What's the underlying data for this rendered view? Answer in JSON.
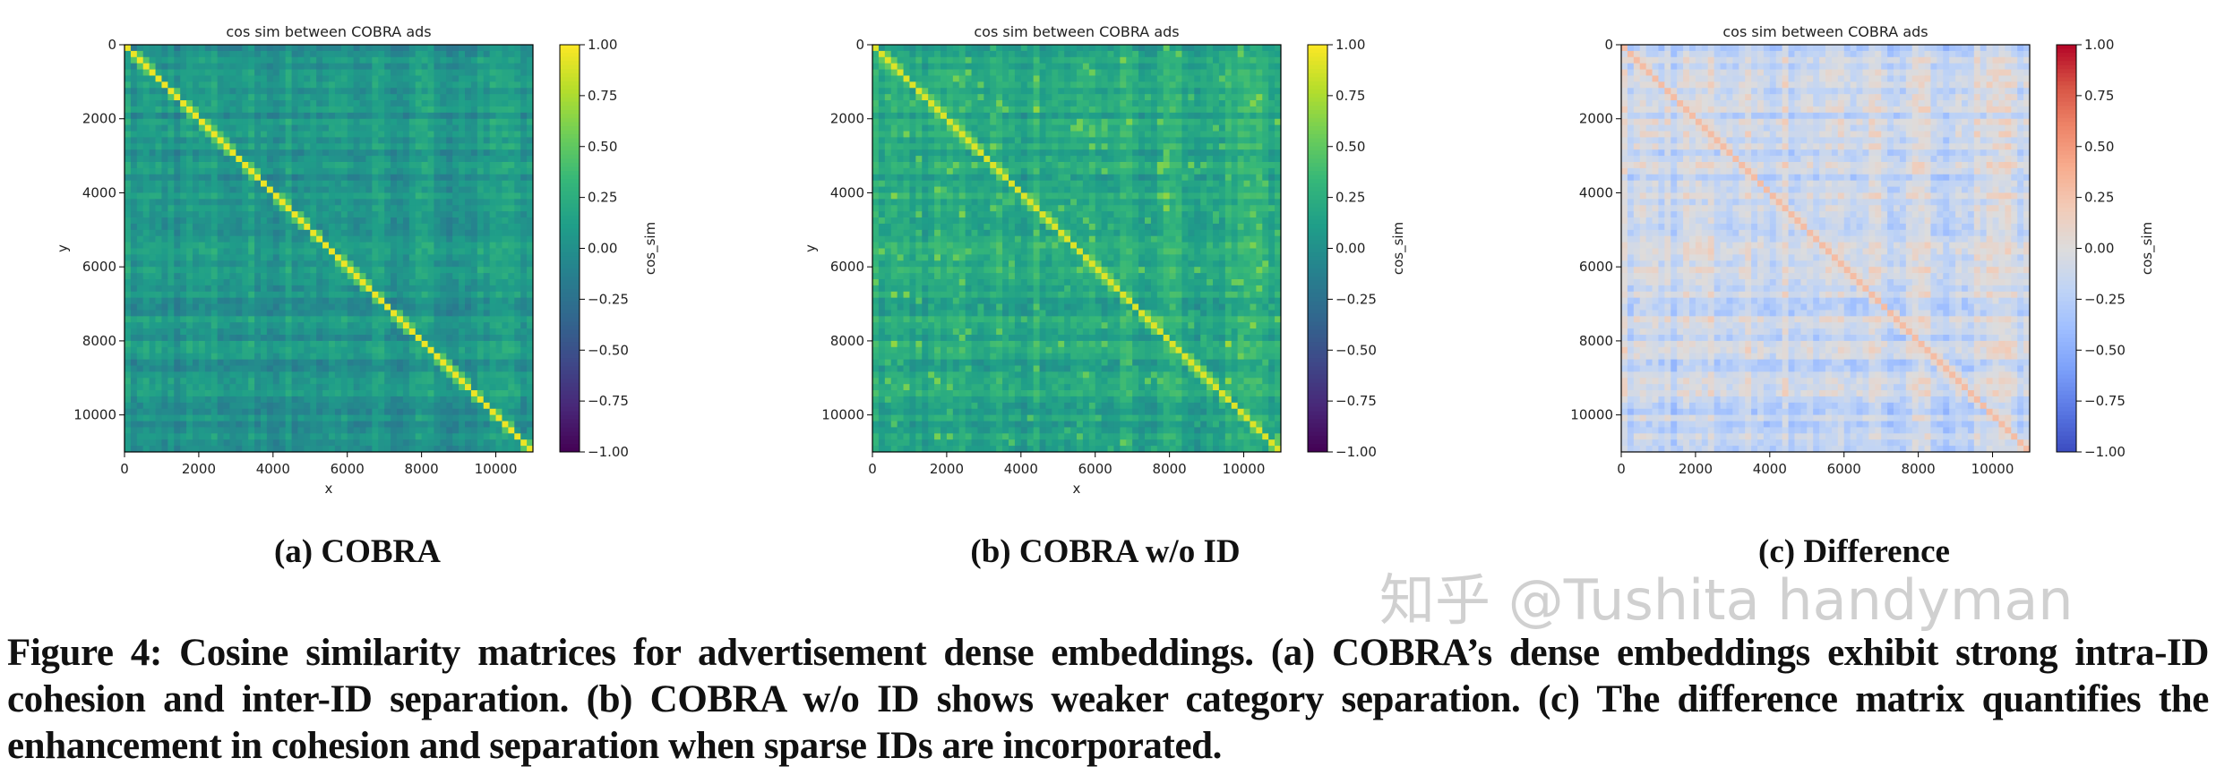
{
  "figure": {
    "subcaptions": [
      "(a) COBRA",
      "(b) COBRA w/o ID",
      "(c) Difference"
    ],
    "caption": "Figure 4: Cosine similarity matrices for advertisement dense embeddings. (a) COBRA’s dense embeddings exhibit strong intra-ID cohesion and inter-ID separation. (b) COBRA w/o ID shows weaker category separation. (c) The difference matrix quantifies the enhancement in cohesion and separation when sparse IDs are incorporated.",
    "watermark": "知乎 @Tushita handyman"
  },
  "chart_data": [
    {
      "type": "heatmap",
      "title": "cos sim between COBRA ads",
      "xlabel": "x",
      "ylabel": "y",
      "xlim": [
        0,
        11000
      ],
      "ylim": [
        11000,
        0
      ],
      "xticks": [
        "0",
        "2000",
        "4000",
        "6000",
        "8000",
        "10000"
      ],
      "yticks": [
        "0",
        "2000",
        "4000",
        "6000",
        "8000",
        "10000"
      ],
      "colormap": "viridis",
      "colorbar": {
        "label": "cos_sim",
        "range": [
          -1,
          1
        ],
        "ticks": [
          "1.00",
          "0.75",
          "0.50",
          "0.25",
          "0.00",
          "−0.25",
          "−0.50",
          "−0.75",
          "−1.00"
        ]
      },
      "background_level": 0.05,
      "diagonal_level": 0.95
    },
    {
      "type": "heatmap",
      "title": "cos sim between COBRA ads",
      "xlabel": "x",
      "ylabel": "y",
      "xlim": [
        0,
        11000
      ],
      "ylim": [
        11000,
        0
      ],
      "xticks": [
        "0",
        "2000",
        "4000",
        "6000",
        "8000",
        "10000"
      ],
      "yticks": [
        "0",
        "2000",
        "4000",
        "6000",
        "8000",
        "10000"
      ],
      "colormap": "viridis",
      "colorbar": {
        "label": "cos_sim",
        "range": [
          -1,
          1
        ],
        "ticks": [
          "1.00",
          "0.75",
          "0.50",
          "0.25",
          "0.00",
          "−0.25",
          "−0.50",
          "−0.75",
          "−1.00"
        ]
      },
      "background_level": 0.2,
      "diagonal_level": 0.9
    },
    {
      "type": "heatmap",
      "title": "cos sim between COBRA ads",
      "xlabel": "",
      "ylabel": "",
      "xlim": [
        0,
        11000
      ],
      "ylim": [
        11000,
        0
      ],
      "xticks": [
        "0",
        "2000",
        "4000",
        "6000",
        "8000",
        "10000"
      ],
      "yticks": [
        "0",
        "2000",
        "4000",
        "6000",
        "8000",
        "10000"
      ],
      "colormap": "coolwarm",
      "colorbar": {
        "label": "cos_sim",
        "range": [
          -1,
          1
        ],
        "ticks": [
          "1.00",
          "0.75",
          "0.50",
          "0.25",
          "0.00",
          "−0.25",
          "−0.50",
          "−0.75",
          "−1.00"
        ]
      },
      "background_level": -0.12,
      "diagonal_level": 0.3
    }
  ]
}
